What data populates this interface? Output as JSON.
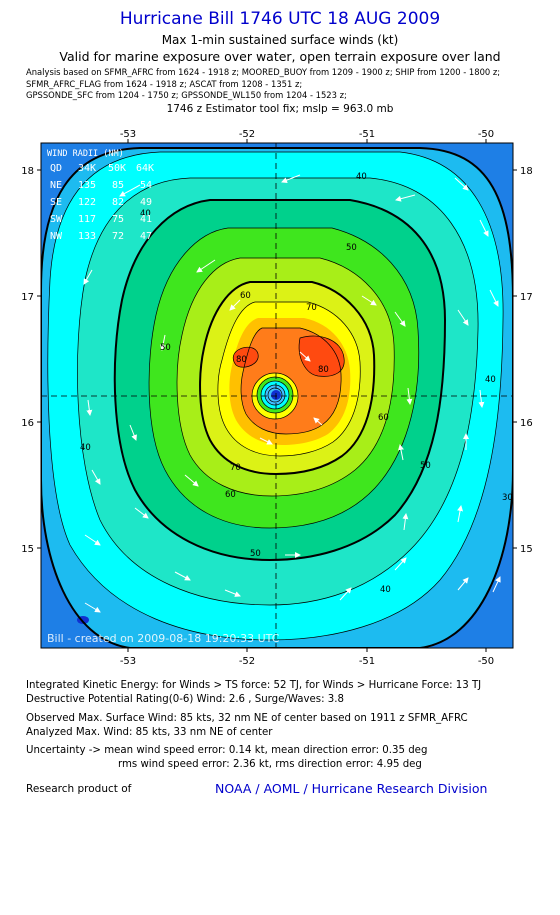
{
  "header": {
    "title": "Hurricane Bill 1746 UTC 18 AUG 2009",
    "subtitle": "Max 1-min sustained surface winds (kt)",
    "valid_note": "Valid for marine exposure over water, open terrain exposure over land",
    "analysis_lines": [
      "Analysis based on  SFMR_AFRC from 1624 - 1918 z;  MOORED_BUOY from 1209 - 1900 z;  SHIP from 1200 - 1800 z;",
      "SFMR_AFRC_FLAG from 1624 - 1918 z;  ASCAT from 1208 - 1351 z;",
      "GPSSONDE_SFC from 1204 - 1750 z;  GPSSONDE_WL150 from 1204 - 1523 z;"
    ],
    "fix_line": "1746 z Estimator tool fix; mslp = 963.0 mb"
  },
  "map": {
    "lon_ticks": [
      "-53",
      "-52",
      "-51",
      "-50"
    ],
    "lat_ticks": [
      "18",
      "17",
      "16",
      "15"
    ],
    "lon_range": [
      -53.75,
      -49.75
    ],
    "lat_range": [
      14.25,
      18.25
    ],
    "center": {
      "lon": -51.75,
      "lat": 16.22
    },
    "contour_labels": [
      "40",
      "40",
      "40",
      "40",
      "40",
      "50",
      "50",
      "50",
      "50",
      "60",
      "60",
      "60",
      "70",
      "70",
      "80",
      "80",
      "30"
    ],
    "watermark": "Bill - created on 2009-08-18 19:20:33 UTC",
    "wind_radii": {
      "header": [
        "WIND RADII (NM)"
      ],
      "columns": [
        "QD",
        "34K",
        "50K",
        "64K"
      ],
      "rows": [
        [
          "NE",
          "135",
          "85",
          "54"
        ],
        [
          "SE",
          "122",
          "82",
          "49"
        ],
        [
          "SW",
          "117",
          "75",
          "41"
        ],
        [
          "NW",
          "133",
          "72",
          "47"
        ]
      ]
    },
    "colors": {
      "ring_30": "#1e7fe6",
      "ring_35": "#1dbbf0",
      "ring_40": "#00ffff",
      "ring_45": "#1ee6c8",
      "ring_50": "#00d18c",
      "ring_55": "#3fe61e",
      "ring_60": "#a8ee18",
      "ring_65": "#dcf216",
      "ring_70": "#ffff00",
      "ring_75": "#ffc000",
      "ring_80": "#ff7c1a",
      "ring_85": "#ff4a10",
      "eye_outer": "#40c0ff",
      "eye_inner": "#1030d0"
    }
  },
  "stats": {
    "ike": "Integrated Kinetic Energy:  for Winds > TS force: 52 TJ,  for Winds > Hurricane Force: 13 TJ",
    "dpr": "Destructive Potential Rating(0-6)   Wind: 2.6 , Surge/Waves: 3.8",
    "observed": "Observed Max. Surface Wind: 85 kts, 32 nm NE of center based on 1911 z SFMR_AFRC",
    "analyzed": "Analyzed Max. Wind: 85 kts, 33 nm NE of center",
    "uncertainty_1": "Uncertainty -> mean wind speed error: 0.14 kt,   mean direction error: 0.35 deg",
    "uncertainty_2": "rms wind speed error: 2.36 kt,   rms direction error: 4.95 deg"
  },
  "credit": {
    "label": "Research product of",
    "link": "NOAA / AOML / Hurricane Research Division"
  }
}
